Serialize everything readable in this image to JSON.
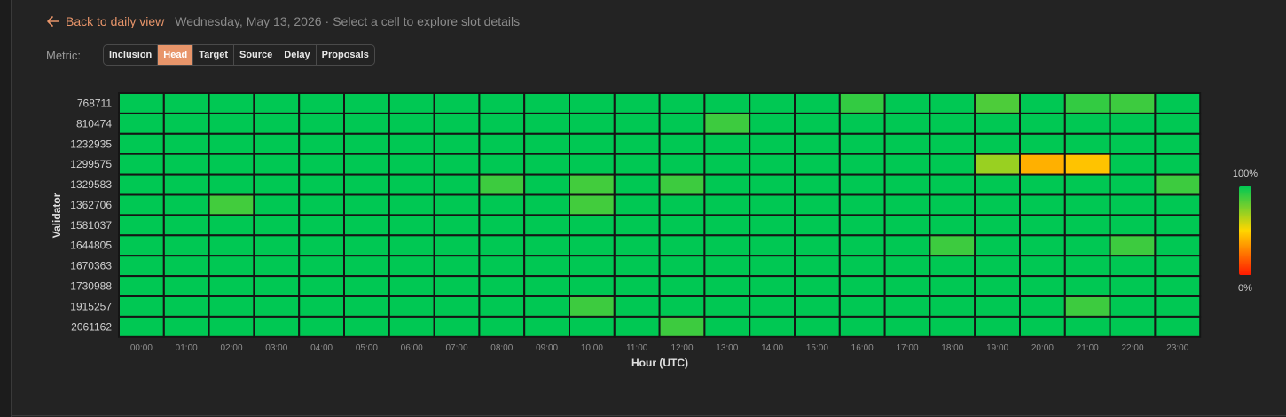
{
  "header": {
    "back_label": "Back to daily view",
    "date": "Wednesday, May 13, 2026",
    "separator": "·",
    "hint": "Select a cell to explore slot details"
  },
  "metric": {
    "label": "Metric:",
    "options": [
      "Inclusion",
      "Head",
      "Target",
      "Source",
      "Delay",
      "Proposals"
    ],
    "active": "Head"
  },
  "colors": {
    "accent": "#e8956a",
    "background": "#232323",
    "cell_stroke": "#151515",
    "scale_high": "#00c853",
    "scale_mid": "#ffd600",
    "scale_low": "#ff1a00"
  },
  "chart_data": {
    "type": "heatmap",
    "xlabel": "Hour (UTC)",
    "ylabel": "Validator",
    "x": [
      "00:00",
      "01:00",
      "02:00",
      "03:00",
      "04:00",
      "05:00",
      "06:00",
      "07:00",
      "08:00",
      "09:00",
      "10:00",
      "11:00",
      "12:00",
      "13:00",
      "14:00",
      "15:00",
      "16:00",
      "17:00",
      "18:00",
      "19:00",
      "20:00",
      "21:00",
      "22:00",
      "23:00"
    ],
    "y": [
      "768711",
      "810474",
      "1232935",
      "1299575",
      "1329583",
      "1362706",
      "1581037",
      "1644805",
      "1670363",
      "1730988",
      "1915257",
      "2061162"
    ],
    "values": [
      [
        100,
        100,
        100,
        100,
        100,
        100,
        100,
        100,
        100,
        100,
        100,
        100,
        100,
        100,
        100,
        100,
        90,
        100,
        100,
        85,
        100,
        90,
        88,
        100
      ],
      [
        100,
        100,
        100,
        100,
        100,
        100,
        100,
        100,
        100,
        100,
        100,
        100,
        100,
        88,
        100,
        100,
        100,
        100,
        100,
        100,
        100,
        100,
        100,
        100
      ],
      [
        100,
        100,
        100,
        100,
        100,
        100,
        100,
        100,
        100,
        100,
        100,
        100,
        100,
        100,
        100,
        100,
        100,
        100,
        100,
        100,
        100,
        100,
        100,
        100
      ],
      [
        100,
        100,
        100,
        100,
        100,
        100,
        100,
        100,
        100,
        100,
        100,
        100,
        100,
        100,
        100,
        100,
        100,
        100,
        100,
        70,
        40,
        45,
        100,
        100
      ],
      [
        100,
        100,
        100,
        100,
        100,
        100,
        100,
        100,
        88,
        100,
        87,
        100,
        88,
        100,
        100,
        100,
        100,
        100,
        100,
        100,
        100,
        100,
        100,
        88
      ],
      [
        100,
        100,
        87,
        100,
        100,
        100,
        100,
        100,
        100,
        100,
        87,
        100,
        100,
        100,
        100,
        100,
        100,
        100,
        100,
        100,
        100,
        100,
        100,
        100
      ],
      [
        100,
        100,
        100,
        100,
        100,
        100,
        100,
        100,
        100,
        100,
        100,
        100,
        100,
        100,
        100,
        100,
        100,
        100,
        100,
        100,
        100,
        100,
        100,
        100
      ],
      [
        100,
        100,
        100,
        100,
        100,
        100,
        100,
        100,
        100,
        100,
        100,
        100,
        100,
        100,
        100,
        100,
        100,
        100,
        88,
        100,
        100,
        100,
        88,
        100
      ],
      [
        100,
        100,
        100,
        100,
        100,
        100,
        100,
        100,
        100,
        100,
        100,
        100,
        100,
        100,
        100,
        100,
        100,
        100,
        100,
        100,
        100,
        100,
        100,
        100
      ],
      [
        100,
        100,
        100,
        100,
        100,
        100,
        100,
        100,
        100,
        100,
        100,
        100,
        100,
        100,
        100,
        100,
        100,
        100,
        100,
        100,
        100,
        100,
        100,
        100
      ],
      [
        100,
        100,
        100,
        100,
        100,
        100,
        100,
        100,
        100,
        100,
        88,
        100,
        100,
        100,
        100,
        100,
        100,
        100,
        100,
        100,
        100,
        88,
        100,
        100
      ],
      [
        100,
        100,
        100,
        100,
        100,
        100,
        100,
        100,
        100,
        100,
        100,
        100,
        88,
        100,
        100,
        100,
        100,
        100,
        100,
        100,
        100,
        100,
        100,
        100
      ]
    ],
    "scale": {
      "min": 0,
      "max": 100,
      "max_label": "100%",
      "min_label": "0%"
    },
    "legend_position": "right"
  }
}
